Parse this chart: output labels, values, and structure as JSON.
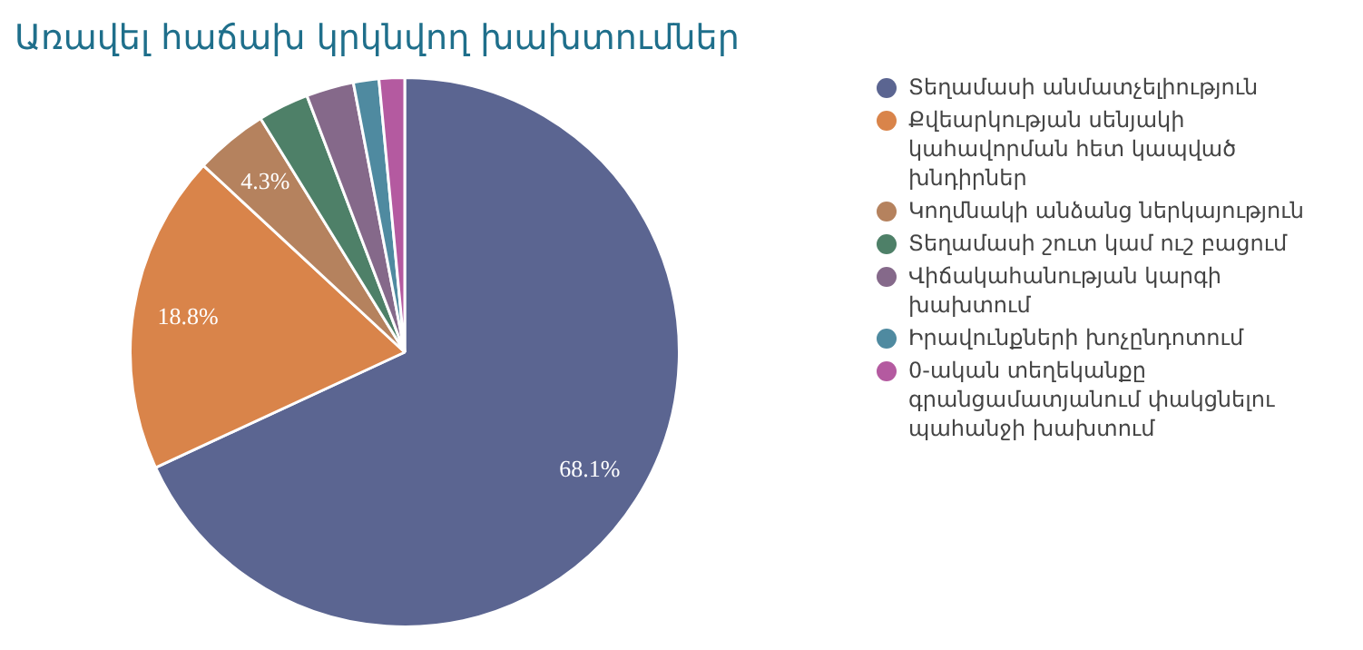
{
  "chart_data": {
    "type": "pie",
    "title": "Առավել հաճախ կրկնվող խախտումներ",
    "categories": [
      "Տեղամասի անմատչելիություն",
      "Քվեարկության սենյակի կահավորման հետ կապված խնդիրներ",
      "Կողմնակի անձանց ներկայություն",
      "Տեղամասի շուտ կամ ուշ բացում",
      "Վիճակահանության կարգի խախտում",
      "Իրավունքների խոչընդոտում",
      "0-ական տեղեկանքը գրանցամատյանում փակցնելու պահանջի խախտում"
    ],
    "values": [
      68.1,
      18.8,
      4.3,
      3.0,
      2.8,
      1.5,
      1.5
    ],
    "value_labels": [
      "68.1%",
      "18.8%",
      "4.3%",
      null,
      null,
      null,
      null
    ],
    "colors": [
      "#5b6591",
      "#d9844a",
      "#b5825e",
      "#4e8068",
      "#85698a",
      "#4f8aa0",
      "#b45aa0"
    ],
    "legend": "right"
  }
}
